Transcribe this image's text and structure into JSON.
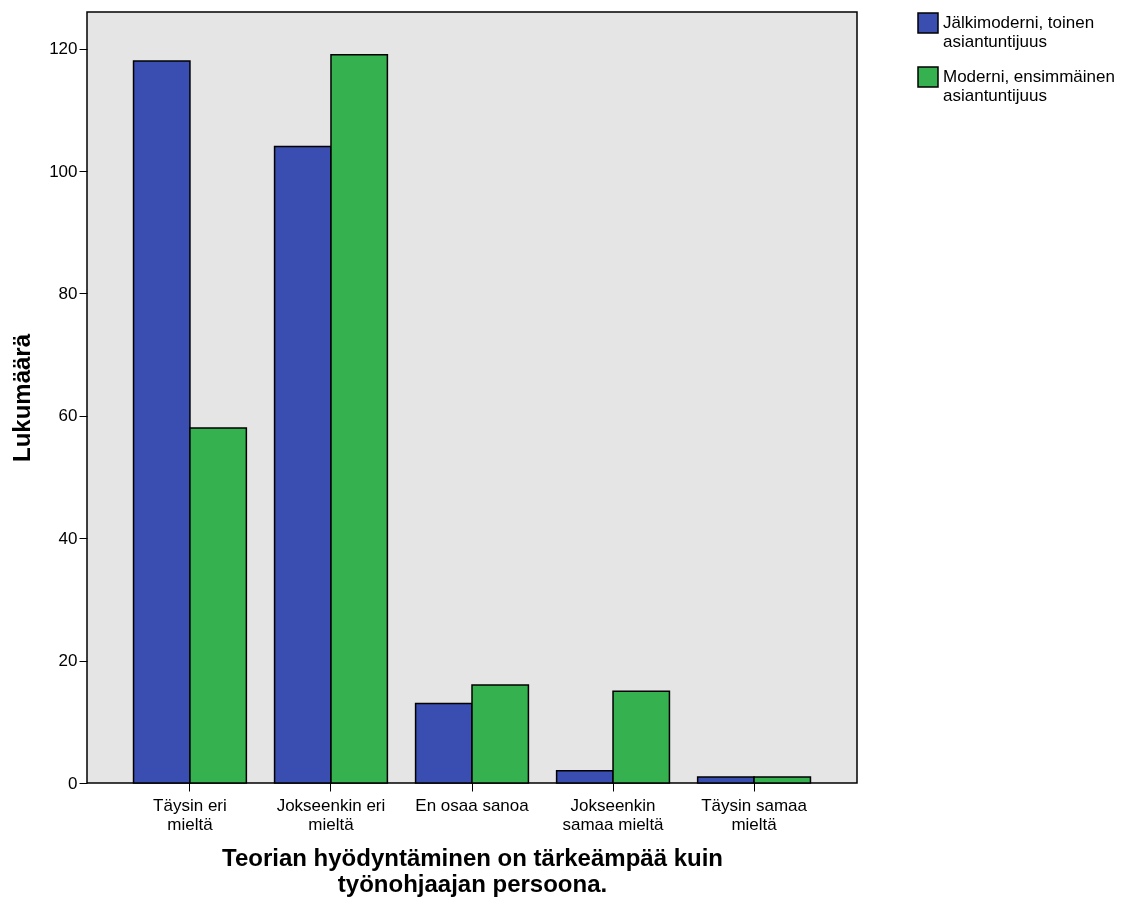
{
  "chart_data": {
    "type": "bar",
    "xlabel": "Teorian hyödyntäminen on tärkeämpää kuin työnohjaajan persoona.",
    "ylabel": "Lukumäärä",
    "categories": [
      "Täysin eri mieltä",
      "Jokseenkin eri mieltä",
      "En osaa sanoa",
      "Jokseenkin samaa mieltä",
      "Täysin samaa mieltä"
    ],
    "series": [
      {
        "name": "Jälkimoderni, toinen asiantuntijuus",
        "color": "#3a4db1",
        "values": [
          118,
          104,
          13,
          2,
          1
        ]
      },
      {
        "name": "Moderni, ensimmäinen asiantuntijuus",
        "color": "#35b24f",
        "values": [
          58,
          119,
          16,
          15,
          1
        ]
      }
    ],
    "ylim": [
      0,
      126
    ],
    "yticks": [
      0,
      20,
      40,
      60,
      80,
      100,
      120
    ],
    "grid": false,
    "legend": "top right"
  }
}
